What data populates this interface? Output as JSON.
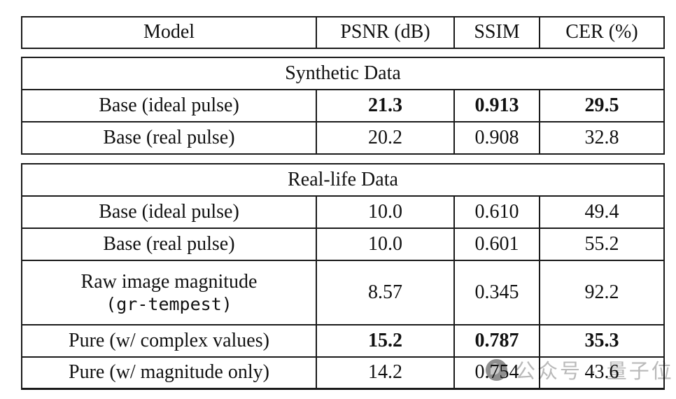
{
  "table": {
    "columns": {
      "model": "Model",
      "psnr": "PSNR (dB)",
      "ssim": "SSIM",
      "cer": "CER (%)"
    },
    "sections": [
      {
        "title": "Synthetic Data",
        "rows": [
          {
            "model": "Base (ideal pulse)",
            "psnr": "21.3",
            "ssim": "0.913",
            "cer": "29.5",
            "bold": true
          },
          {
            "model": "Base (real pulse)",
            "psnr": "20.2",
            "ssim": "0.908",
            "cer": "32.8",
            "bold": false
          }
        ]
      },
      {
        "title": "Real-life Data",
        "rows": [
          {
            "model": "Base (ideal pulse)",
            "psnr": "10.0",
            "ssim": "0.610",
            "cer": "49.4",
            "bold": false
          },
          {
            "model": "Base (real pulse)",
            "psnr": "10.0",
            "ssim": "0.601",
            "cer": "55.2",
            "bold": false
          },
          {
            "model_line1": "Raw image magnitude",
            "model_line2": "(gr-tempest)",
            "psnr": "8.57",
            "ssim": "0.345",
            "cer": "92.2",
            "bold": false
          },
          {
            "model": "Pure (w/ complex values)",
            "psnr": "15.2",
            "ssim": "0.787",
            "cer": "35.3",
            "bold": true
          },
          {
            "model": "Pure (w/ magnitude only)",
            "psnr": "14.2",
            "ssim": "0.754",
            "cer": "43.6",
            "bold": false
          }
        ]
      }
    ]
  },
  "watermark": {
    "text": "公众号 · 量子位"
  },
  "colors": {
    "border": "#1a1a1a",
    "text": "#111111",
    "background": "#ffffff",
    "watermark_text": "#b9b9b9",
    "watermark_circle": "#8f8f8f"
  }
}
